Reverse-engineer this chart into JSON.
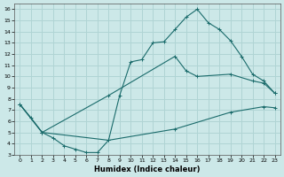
{
  "title": "",
  "xlabel": "Humidex (Indice chaleur)",
  "ylabel": "",
  "xlim": [
    -0.5,
    23.5
  ],
  "ylim": [
    3,
    16.5
  ],
  "xticks": [
    0,
    1,
    2,
    3,
    4,
    5,
    6,
    7,
    8,
    9,
    10,
    11,
    12,
    13,
    14,
    15,
    16,
    17,
    18,
    19,
    20,
    21,
    22,
    23
  ],
  "yticks": [
    3,
    4,
    5,
    6,
    7,
    8,
    9,
    10,
    11,
    12,
    13,
    14,
    15,
    16
  ],
  "bg_color": "#cce8e8",
  "grid_color": "#b0d4d4",
  "line_color": "#1a6b6b",
  "curve1_x": [
    0,
    1,
    2,
    3,
    4,
    5,
    6,
    7,
    8,
    9,
    10,
    11,
    12,
    13,
    14,
    15,
    16,
    17,
    18,
    19,
    20,
    21,
    22,
    23
  ],
  "curve1_y": [
    7.5,
    6.3,
    5.0,
    4.5,
    3.8,
    3.5,
    3.2,
    3.2,
    4.3,
    8.3,
    11.3,
    11.5,
    13.0,
    13.1,
    14.2,
    15.3,
    16.0,
    14.8,
    14.2,
    13.2,
    11.8,
    10.2,
    9.6,
    8.5
  ],
  "curve2_x": [
    0,
    2,
    8,
    14,
    15,
    16,
    19,
    21,
    22,
    23
  ],
  "curve2_y": [
    7.5,
    5.0,
    8.3,
    11.8,
    10.5,
    10.0,
    10.2,
    9.6,
    9.4,
    8.5
  ],
  "curve3_x": [
    0,
    2,
    8,
    14,
    19,
    22,
    23
  ],
  "curve3_y": [
    7.5,
    5.0,
    4.3,
    5.3,
    6.8,
    7.3,
    7.2
  ]
}
